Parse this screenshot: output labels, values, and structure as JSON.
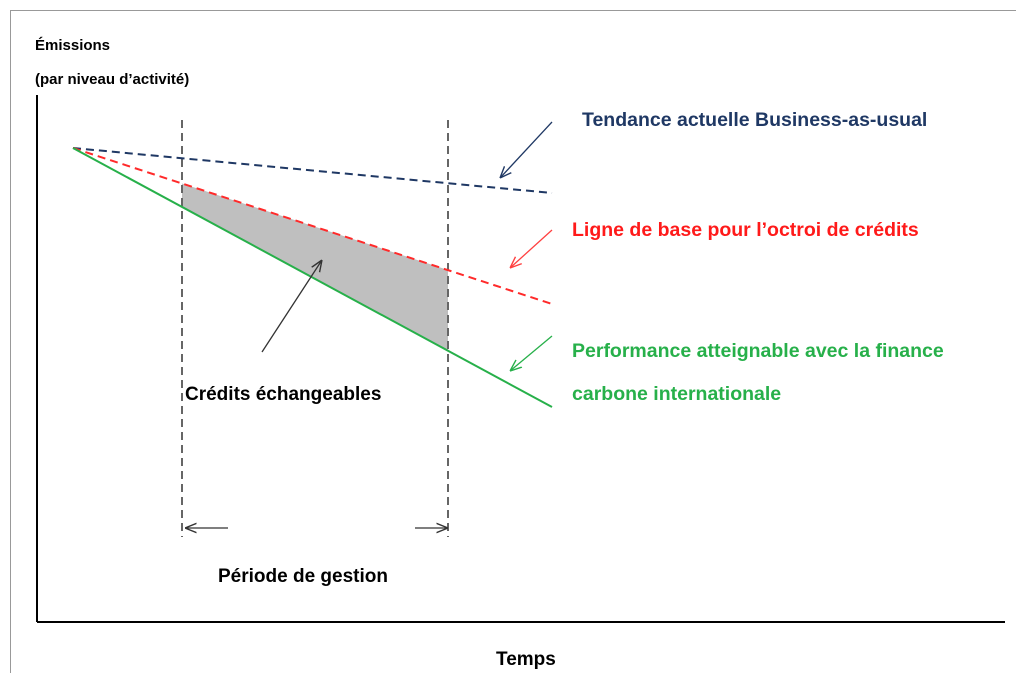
{
  "axes": {
    "y_label_line1": "Émissions",
    "y_label_line2": "(par niveau d’activité)",
    "x_label": "Temps"
  },
  "lines": [
    {
      "label": "Tendance actuelle Business-as-usual"
    },
    {
      "label": "Ligne de base pour l’octroi de crédits"
    },
    {
      "label_line1": "Performance atteignable avec la finance",
      "label_line2": "carbone internationale"
    }
  ],
  "area_label": "Crédits échangeables",
  "period_label": "Période de gestion"
}
